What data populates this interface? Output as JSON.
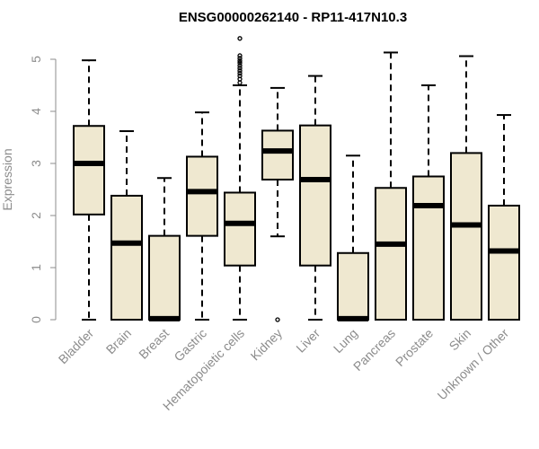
{
  "chart_data": {
    "type": "box",
    "title": "ENSG00000262140 - RP11-417N10.3",
    "xlabel": "",
    "ylabel": "Expression",
    "ylim": [
      0,
      5
    ],
    "yticks": [
      0,
      1,
      2,
      3,
      4,
      5
    ],
    "grid": false,
    "box_fill": "#efe8d0",
    "box_stroke": "#000000",
    "categories": [
      "Bladder",
      "Brain",
      "Breast",
      "Gastric",
      "Hematopoietic cells",
      "Kidney",
      "Liver",
      "Lung",
      "Pancreas",
      "Prostate",
      "Skin",
      "Unknown / Other"
    ],
    "boxes": [
      {
        "category": "Bladder",
        "whisker_low": 0,
        "q1": 2.02,
        "median": 3.0,
        "q3": 3.72,
        "whisker_high": 4.98,
        "outliers": []
      },
      {
        "category": "Brain",
        "whisker_low": 0,
        "q1": 0,
        "median": 1.47,
        "q3": 2.38,
        "whisker_high": 3.62,
        "outliers": []
      },
      {
        "category": "Breast",
        "whisker_low": 0,
        "q1": 0,
        "median": 0.02,
        "q3": 1.61,
        "whisker_high": 2.72,
        "outliers": []
      },
      {
        "category": "Gastric",
        "whisker_low": 0,
        "q1": 1.61,
        "median": 2.46,
        "q3": 3.13,
        "whisker_high": 3.98,
        "outliers": []
      },
      {
        "category": "Hematopoietic cells",
        "whisker_low": 0,
        "q1": 1.04,
        "median": 1.85,
        "q3": 2.44,
        "whisker_high": 4.5,
        "outliers": [
          4.55,
          4.62,
          4.68,
          4.73,
          4.78,
          4.83,
          4.88,
          4.93,
          4.97,
          5.02,
          5.07,
          5.4
        ]
      },
      {
        "category": "Kidney",
        "whisker_low": 1.6,
        "q1": 2.69,
        "median": 3.24,
        "q3": 3.63,
        "whisker_high": 4.45,
        "outliers": [
          0.0
        ]
      },
      {
        "category": "Liver",
        "whisker_low": 0,
        "q1": 1.04,
        "median": 2.69,
        "q3": 3.73,
        "whisker_high": 4.68,
        "outliers": []
      },
      {
        "category": "Lung",
        "whisker_low": 0,
        "q1": 0,
        "median": 0.02,
        "q3": 1.28,
        "whisker_high": 3.15,
        "outliers": []
      },
      {
        "category": "Pancreas",
        "whisker_low": 0,
        "q1": 0,
        "median": 1.45,
        "q3": 2.53,
        "whisker_high": 5.13,
        "outliers": []
      },
      {
        "category": "Prostate",
        "whisker_low": 0,
        "q1": 0,
        "median": 2.19,
        "q3": 2.75,
        "whisker_high": 4.5,
        "outliers": []
      },
      {
        "category": "Skin",
        "whisker_low": 0,
        "q1": 0,
        "median": 1.82,
        "q3": 3.2,
        "whisker_high": 5.06,
        "outliers": []
      },
      {
        "category": "Unknown / Other",
        "whisker_low": 0,
        "q1": 0,
        "median": 1.32,
        "q3": 2.19,
        "whisker_high": 3.93,
        "outliers": []
      }
    ]
  }
}
